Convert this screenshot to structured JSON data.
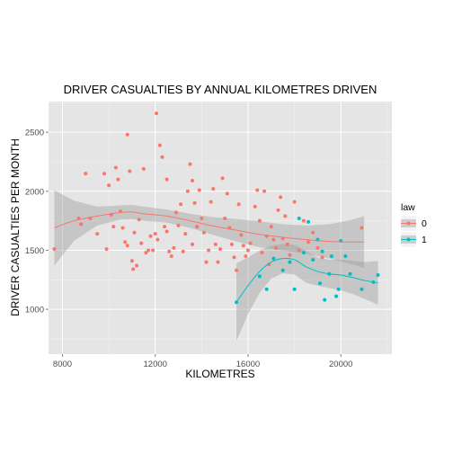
{
  "chart_data": {
    "type": "scatter",
    "title": "DRIVER CASUALTIES BY ANNUAL KILOMETRES DRIVEN",
    "xlabel": "KILOMETRES",
    "ylabel": "DRIVER CASUALTIES PER MONTH",
    "xlim": [
      7400,
      22200
    ],
    "ylim": [
      620,
      2760
    ],
    "xticks": [
      8000,
      12000,
      16000,
      20000
    ],
    "xtick_labels": [
      "8000",
      "12000",
      "16000",
      "20000"
    ],
    "yticks": [
      1000,
      1500,
      2000,
      2500
    ],
    "ytick_labels": [
      "1000",
      "1500",
      "2000",
      "2500"
    ],
    "grid": true,
    "legend": {
      "title": "law",
      "placement": "right"
    },
    "series": [
      {
        "name": "0",
        "color": "#F8766D",
        "points": [
          [
            7650,
            1510
          ],
          [
            8700,
            1770
          ],
          [
            8800,
            1720
          ],
          [
            9000,
            2150
          ],
          [
            9200,
            1770
          ],
          [
            9500,
            1640
          ],
          [
            9800,
            2150
          ],
          [
            9900,
            1510
          ],
          [
            10000,
            2050
          ],
          [
            10100,
            1800
          ],
          [
            10200,
            1700
          ],
          [
            10300,
            2200
          ],
          [
            10400,
            2100
          ],
          [
            10500,
            1830
          ],
          [
            10600,
            1690
          ],
          [
            10700,
            1570
          ],
          [
            10800,
            2480
          ],
          [
            10800,
            1540
          ],
          [
            10900,
            2170
          ],
          [
            11000,
            1410
          ],
          [
            11050,
            1340
          ],
          [
            11100,
            1650
          ],
          [
            11200,
            1370
          ],
          [
            11300,
            1760
          ],
          [
            11400,
            1560
          ],
          [
            11500,
            2190
          ],
          [
            11600,
            1480
          ],
          [
            11700,
            1500
          ],
          [
            11800,
            1620
          ],
          [
            11900,
            1500
          ],
          [
            12000,
            1640
          ],
          [
            12050,
            2660
          ],
          [
            12100,
            1590
          ],
          [
            12200,
            2390
          ],
          [
            12300,
            2290
          ],
          [
            12400,
            1700
          ],
          [
            12500,
            2100
          ],
          [
            12500,
            1660
          ],
          [
            12600,
            1490
          ],
          [
            12700,
            1450
          ],
          [
            12800,
            1520
          ],
          [
            12900,
            1820
          ],
          [
            13000,
            1710
          ],
          [
            13100,
            1890
          ],
          [
            13200,
            1490
          ],
          [
            13300,
            1640
          ],
          [
            13400,
            2000
          ],
          [
            13500,
            2230
          ],
          [
            13600,
            2090
          ],
          [
            13600,
            1550
          ],
          [
            13700,
            1900
          ],
          [
            13800,
            1700
          ],
          [
            13900,
            2010
          ],
          [
            14000,
            1770
          ],
          [
            14100,
            1650
          ],
          [
            14200,
            1400
          ],
          [
            14300,
            1500
          ],
          [
            14400,
            1910
          ],
          [
            14500,
            2020
          ],
          [
            14600,
            1550
          ],
          [
            14700,
            1400
          ],
          [
            14800,
            1510
          ],
          [
            14900,
            2110
          ],
          [
            15000,
            1770
          ],
          [
            15100,
            1980
          ],
          [
            15200,
            1690
          ],
          [
            15300,
            1550
          ],
          [
            15400,
            1440
          ],
          [
            15500,
            1330
          ],
          [
            15600,
            1890
          ],
          [
            15700,
            1630
          ],
          [
            15800,
            1540
          ],
          [
            15900,
            1450
          ],
          [
            16000,
            1500
          ],
          [
            16100,
            1560
          ],
          [
            16300,
            1870
          ],
          [
            16400,
            2010
          ],
          [
            16500,
            1750
          ],
          [
            16600,
            1480
          ],
          [
            16700,
            2000
          ],
          [
            16800,
            1620
          ],
          [
            16900,
            1380
          ],
          [
            17000,
            1700
          ],
          [
            17100,
            1590
          ],
          [
            17200,
            1520
          ],
          [
            17300,
            1840
          ],
          [
            17400,
            1950
          ],
          [
            17500,
            1600
          ],
          [
            17600,
            1790
          ],
          [
            17700,
            1550
          ],
          [
            17800,
            1460
          ],
          [
            18000,
            1910
          ],
          [
            18200,
            1500
          ],
          [
            18400,
            1750
          ],
          [
            18600,
            1570
          ],
          [
            18800,
            1650
          ],
          [
            19000,
            1520
          ],
          [
            19200,
            1440
          ],
          [
            20900,
            1690
          ]
        ],
        "smooth": [
          [
            7650,
            1690
          ],
          [
            8500,
            1750
          ],
          [
            9500,
            1790
          ],
          [
            10500,
            1820
          ],
          [
            11000,
            1825
          ],
          [
            11500,
            1810
          ],
          [
            12500,
            1790
          ],
          [
            13500,
            1750
          ],
          [
            14500,
            1705
          ],
          [
            15500,
            1670
          ],
          [
            16500,
            1635
          ],
          [
            17500,
            1610
          ],
          [
            18500,
            1590
          ],
          [
            19500,
            1575
          ],
          [
            20500,
            1570
          ],
          [
            21000,
            1570
          ]
        ],
        "band_upper": [
          [
            7650,
            2010
          ],
          [
            8500,
            1920
          ],
          [
            9500,
            1870
          ],
          [
            10500,
            1880
          ],
          [
            11000,
            1885
          ],
          [
            11500,
            1870
          ],
          [
            12500,
            1845
          ],
          [
            13500,
            1810
          ],
          [
            14500,
            1780
          ],
          [
            15500,
            1765
          ],
          [
            16500,
            1745
          ],
          [
            17500,
            1720
          ],
          [
            18500,
            1710
          ],
          [
            19500,
            1720
          ],
          [
            20500,
            1760
          ],
          [
            21000,
            1790
          ]
        ],
        "band_lower": [
          [
            7650,
            1370
          ],
          [
            8500,
            1580
          ],
          [
            9500,
            1710
          ],
          [
            10500,
            1760
          ],
          [
            11000,
            1765
          ],
          [
            11500,
            1750
          ],
          [
            12500,
            1735
          ],
          [
            13500,
            1690
          ],
          [
            14500,
            1630
          ],
          [
            15500,
            1575
          ],
          [
            16500,
            1525
          ],
          [
            17500,
            1500
          ],
          [
            18500,
            1470
          ],
          [
            19500,
            1430
          ],
          [
            20500,
            1380
          ],
          [
            21000,
            1350
          ]
        ]
      },
      {
        "name": "1",
        "color": "#00BFC4",
        "points": [
          [
            15500,
            1060
          ],
          [
            16500,
            1280
          ],
          [
            16800,
            1170
          ],
          [
            17100,
            1430
          ],
          [
            17500,
            1330
          ],
          [
            17800,
            1400
          ],
          [
            18000,
            1170
          ],
          [
            18200,
            1770
          ],
          [
            18400,
            1480
          ],
          [
            18600,
            1740
          ],
          [
            18800,
            1420
          ],
          [
            19000,
            1590
          ],
          [
            19100,
            1220
          ],
          [
            19200,
            1490
          ],
          [
            19300,
            1080
          ],
          [
            19500,
            1300
          ],
          [
            19600,
            1450
          ],
          [
            19800,
            1110
          ],
          [
            19900,
            1170
          ],
          [
            20000,
            1580
          ],
          [
            20200,
            1450
          ],
          [
            20400,
            1300
          ],
          [
            20900,
            1170
          ],
          [
            21400,
            1230
          ],
          [
            21600,
            1290
          ]
        ],
        "smooth": [
          [
            15500,
            1060
          ],
          [
            16000,
            1200
          ],
          [
            16500,
            1320
          ],
          [
            17000,
            1400
          ],
          [
            17500,
            1430
          ],
          [
            18000,
            1420
          ],
          [
            18500,
            1360
          ],
          [
            19000,
            1320
          ],
          [
            19500,
            1300
          ],
          [
            20000,
            1290
          ],
          [
            20500,
            1270
          ],
          [
            21000,
            1245
          ],
          [
            21600,
            1225
          ]
        ],
        "band_upper": [
          [
            15500,
            1390
          ],
          [
            16000,
            1440
          ],
          [
            16500,
            1500
          ],
          [
            17000,
            1540
          ],
          [
            17500,
            1555
          ],
          [
            18000,
            1545
          ],
          [
            18500,
            1495
          ],
          [
            19000,
            1440
          ],
          [
            19500,
            1420
          ],
          [
            20000,
            1420
          ],
          [
            20500,
            1410
          ],
          [
            21000,
            1400
          ],
          [
            21600,
            1410
          ]
        ],
        "band_lower": [
          [
            15500,
            730
          ],
          [
            16000,
            960
          ],
          [
            16500,
            1140
          ],
          [
            17000,
            1260
          ],
          [
            17500,
            1305
          ],
          [
            18000,
            1295
          ],
          [
            18500,
            1225
          ],
          [
            19000,
            1200
          ],
          [
            19500,
            1180
          ],
          [
            20000,
            1160
          ],
          [
            20500,
            1130
          ],
          [
            21000,
            1090
          ],
          [
            21600,
            1040
          ]
        ]
      }
    ]
  }
}
